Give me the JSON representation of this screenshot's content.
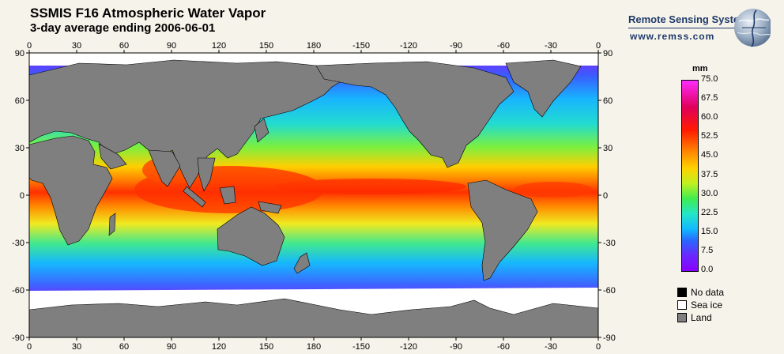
{
  "header": {
    "title": "SSMIS F16 Atmospheric Water Vapor",
    "subtitle": "3-day average ending 2006-06-01"
  },
  "logo": {
    "name": "Remote Sensing Systems",
    "url": "www.remss.com"
  },
  "map": {
    "lon_ticks": [
      "0",
      "30",
      "60",
      "90",
      "120",
      "150",
      "180",
      "-150",
      "-120",
      "-90",
      "-60",
      "-30",
      "0"
    ],
    "lat_ticks": [
      "90",
      "60",
      "30",
      "0",
      "-30",
      "-60",
      "-90"
    ],
    "colors": {
      "land": "#7f7f7f",
      "sea_ice": "#ffffff",
      "no_data": "#000000"
    }
  },
  "colorbar": {
    "unit": "mm",
    "labels": [
      "75.0",
      "67.5",
      "60.0",
      "52.5",
      "45.0",
      "37.5",
      "30.0",
      "22.5",
      "15.0",
      "7.5",
      "0.0"
    ],
    "range": [
      0,
      75
    ]
  },
  "legend": [
    {
      "label": "No data",
      "color": "#000000"
    },
    {
      "label": "Sea ice",
      "color": "#ffffff"
    },
    {
      "label": "Land",
      "color": "#7f7f7f"
    }
  ]
}
